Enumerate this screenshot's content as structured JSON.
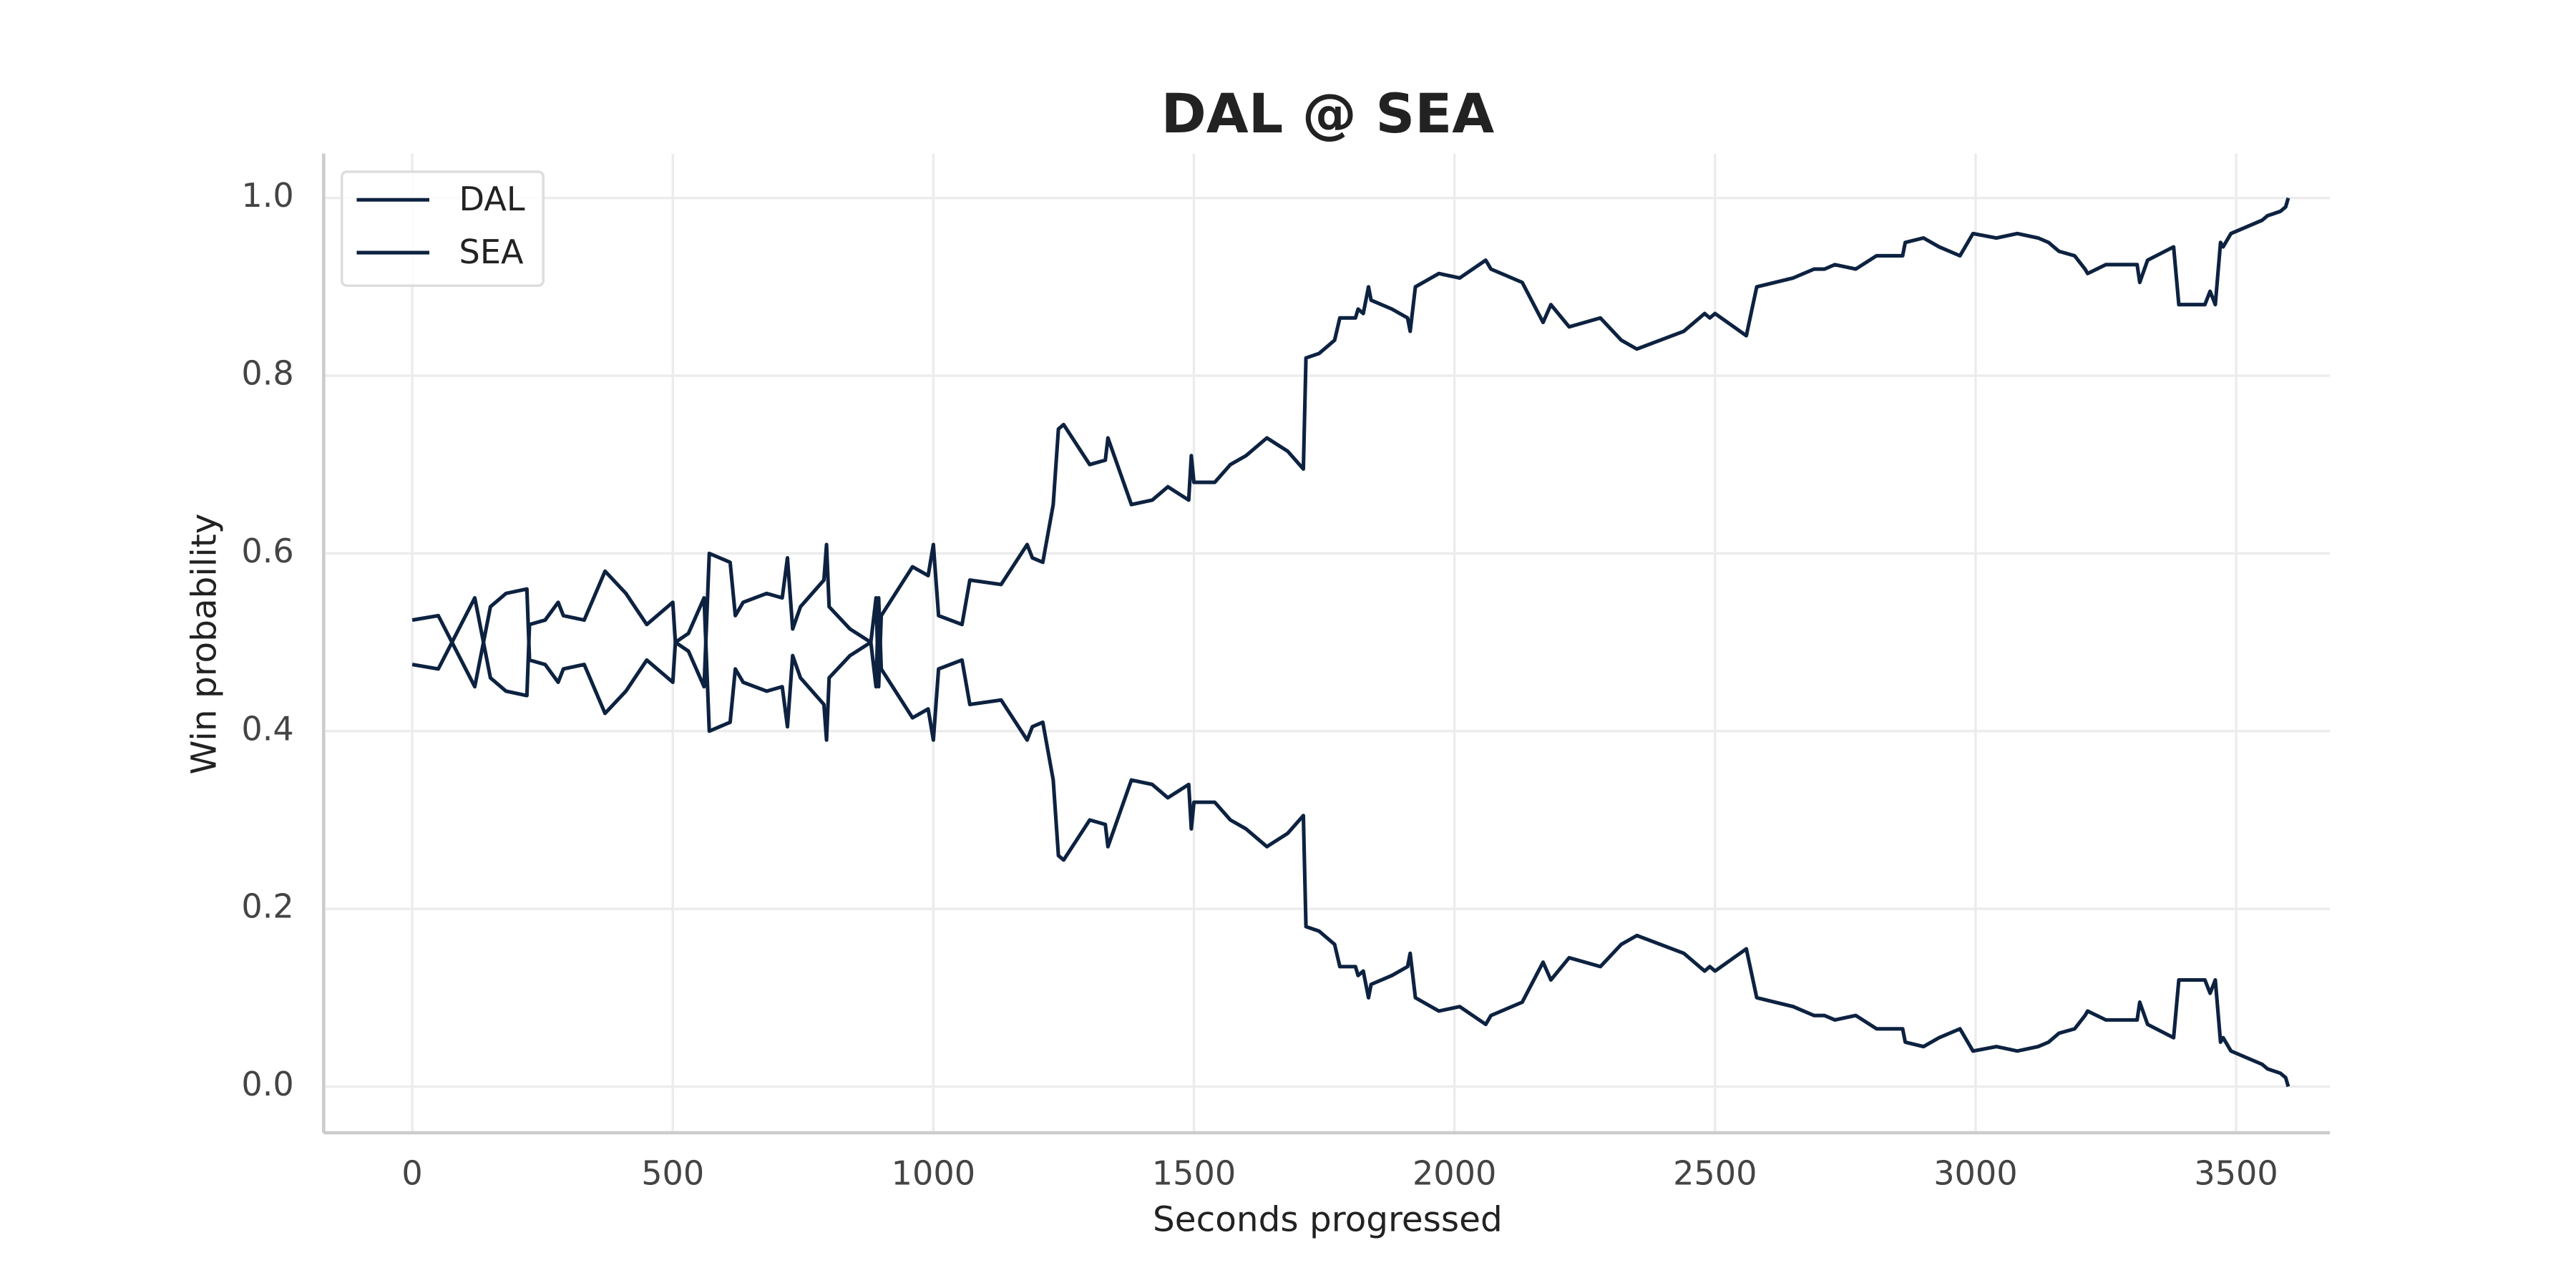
{
  "chart_data": {
    "type": "line",
    "title": "DAL @ SEA",
    "x_label": "Seconds progressed",
    "y_label": "Win probability",
    "x": [
      0,
      50,
      120,
      150,
      180,
      220,
      225,
      255,
      280,
      290,
      330,
      370,
      410,
      450,
      500,
      505,
      530,
      560,
      570,
      610,
      620,
      635,
      680,
      710,
      720,
      730,
      745,
      790,
      795,
      800,
      840,
      880,
      890,
      895,
      900,
      960,
      990,
      1000,
      1010,
      1055,
      1070,
      1130,
      1180,
      1190,
      1210,
      1230,
      1240,
      1250,
      1300,
      1330,
      1335,
      1380,
      1420,
      1450,
      1490,
      1495,
      1500,
      1540,
      1570,
      1600,
      1640,
      1680,
      1710,
      1715,
      1740,
      1770,
      1780,
      1810,
      1815,
      1825,
      1835,
      1840,
      1880,
      1910,
      1915,
      1925,
      1970,
      2010,
      2060,
      2070,
      2130,
      2170,
      2185,
      2220,
      2280,
      2320,
      2350,
      2440,
      2480,
      2490,
      2500,
      2560,
      2580,
      2650,
      2690,
      2710,
      2730,
      2770,
      2810,
      2860,
      2865,
      2900,
      2930,
      2970,
      2995,
      3040,
      3080,
      3120,
      3140,
      3160,
      3190,
      3210,
      3215,
      3250,
      3310,
      3315,
      3330,
      3380,
      3390,
      3440,
      3450,
      3460,
      3470,
      3475,
      3490,
      3550,
      3560,
      3585,
      3595,
      3600
    ],
    "series": [
      {
        "name": "DAL",
        "color": "#0d2240",
        "values": [
          0.475,
          0.47,
          0.55,
          0.46,
          0.445,
          0.44,
          0.52,
          0.525,
          0.545,
          0.53,
          0.525,
          0.58,
          0.555,
          0.52,
          0.545,
          0.5,
          0.51,
          0.55,
          0.4,
          0.41,
          0.47,
          0.455,
          0.445,
          0.45,
          0.405,
          0.485,
          0.46,
          0.43,
          0.39,
          0.46,
          0.485,
          0.5,
          0.45,
          0.55,
          0.47,
          0.415,
          0.425,
          0.39,
          0.47,
          0.48,
          0.43,
          0.435,
          0.39,
          0.405,
          0.41,
          0.345,
          0.26,
          0.255,
          0.3,
          0.295,
          0.27,
          0.345,
          0.34,
          0.325,
          0.34,
          0.29,
          0.32,
          0.32,
          0.3,
          0.29,
          0.27,
          0.285,
          0.305,
          0.18,
          0.175,
          0.16,
          0.135,
          0.135,
          0.125,
          0.13,
          0.1,
          0.115,
          0.125,
          0.135,
          0.15,
          0.1,
          0.085,
          0.09,
          0.07,
          0.08,
          0.095,
          0.14,
          0.12,
          0.145,
          0.135,
          0.16,
          0.17,
          0.15,
          0.13,
          0.135,
          0.13,
          0.155,
          0.1,
          0.09,
          0.08,
          0.08,
          0.075,
          0.08,
          0.065,
          0.065,
          0.05,
          0.045,
          0.055,
          0.065,
          0.04,
          0.045,
          0.04,
          0.045,
          0.05,
          0.06,
          0.065,
          0.08,
          0.085,
          0.075,
          0.075,
          0.095,
          0.07,
          0.055,
          0.12,
          0.12,
          0.105,
          0.12,
          0.05,
          0.055,
          0.04,
          0.025,
          0.02,
          0.015,
          0.01,
          0.0
        ]
      },
      {
        "name": "SEA",
        "color": "#0d2240",
        "values": [
          0.525,
          0.53,
          0.45,
          0.54,
          0.555,
          0.56,
          0.48,
          0.475,
          0.455,
          0.47,
          0.475,
          0.42,
          0.445,
          0.48,
          0.455,
          0.5,
          0.49,
          0.45,
          0.6,
          0.59,
          0.53,
          0.545,
          0.555,
          0.55,
          0.595,
          0.515,
          0.54,
          0.57,
          0.61,
          0.54,
          0.515,
          0.5,
          0.55,
          0.45,
          0.53,
          0.585,
          0.575,
          0.61,
          0.53,
          0.52,
          0.57,
          0.565,
          0.61,
          0.595,
          0.59,
          0.655,
          0.74,
          0.745,
          0.7,
          0.705,
          0.73,
          0.655,
          0.66,
          0.675,
          0.66,
          0.71,
          0.68,
          0.68,
          0.7,
          0.71,
          0.73,
          0.715,
          0.695,
          0.82,
          0.825,
          0.84,
          0.865,
          0.865,
          0.875,
          0.87,
          0.9,
          0.885,
          0.875,
          0.865,
          0.85,
          0.9,
          0.915,
          0.91,
          0.93,
          0.92,
          0.905,
          0.86,
          0.88,
          0.855,
          0.865,
          0.84,
          0.83,
          0.85,
          0.87,
          0.865,
          0.87,
          0.845,
          0.9,
          0.91,
          0.92,
          0.92,
          0.925,
          0.92,
          0.935,
          0.935,
          0.95,
          0.955,
          0.945,
          0.935,
          0.96,
          0.955,
          0.96,
          0.955,
          0.95,
          0.94,
          0.935,
          0.92,
          0.915,
          0.925,
          0.925,
          0.905,
          0.93,
          0.945,
          0.88,
          0.88,
          0.895,
          0.88,
          0.95,
          0.945,
          0.96,
          0.975,
          0.98,
          0.985,
          0.99,
          1.0
        ]
      }
    ],
    "xlim": [
      -170,
      3680
    ],
    "ylim": [
      -0.052,
      1.05
    ],
    "xticks": [
      0,
      500,
      1000,
      1500,
      2000,
      2500,
      3000,
      3500
    ],
    "yticks": [
      {
        "value": 0,
        "label": "0.0"
      },
      0.2,
      0.4,
      0.6,
      0.8,
      {
        "value": 1,
        "label": "1.0"
      }
    ],
    "grid": true,
    "legend": "upper left"
  }
}
